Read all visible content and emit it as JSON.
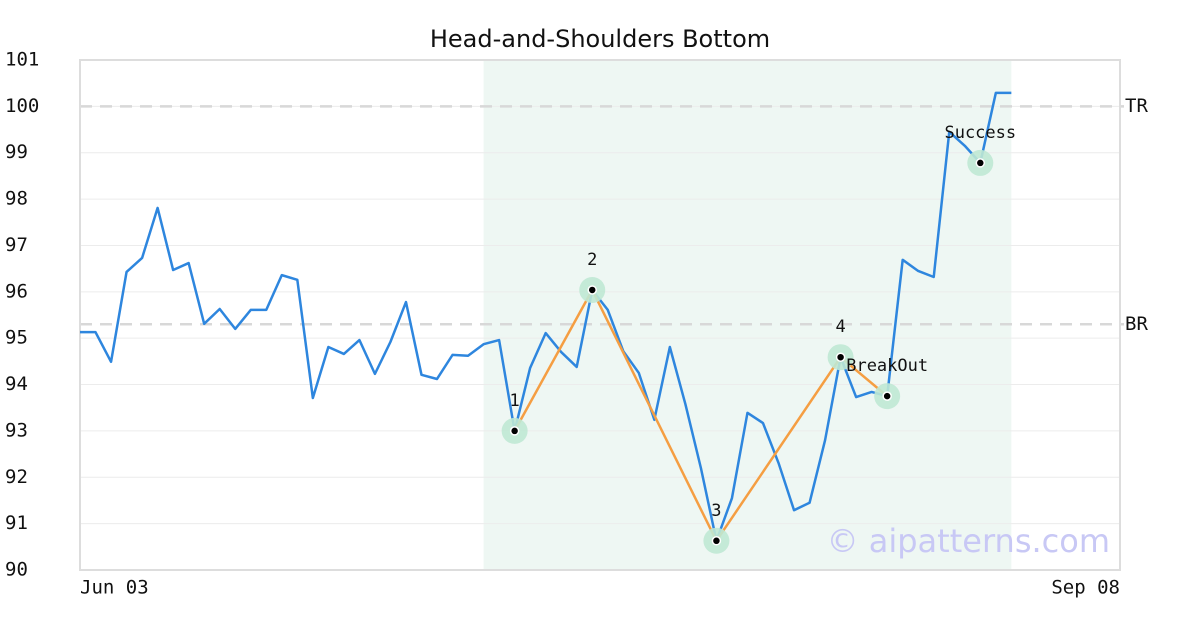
{
  "chart_data": {
    "type": "line",
    "title": "Head-and-Shoulders Bottom",
    "categories": [
      "Jun 03",
      null,
      null,
      null,
      null,
      null,
      null,
      null,
      null,
      null,
      null,
      null,
      null,
      null,
      null,
      null,
      null,
      null,
      null,
      null,
      null,
      null,
      null,
      null,
      null,
      null,
      null,
      null,
      null,
      null,
      null,
      null,
      null,
      null,
      null,
      null,
      null,
      null,
      null,
      null,
      null,
      null,
      null,
      null,
      null,
      null,
      null,
      null,
      null,
      null,
      null,
      null,
      null,
      null,
      null,
      null,
      null,
      null,
      null,
      null,
      null,
      null,
      null,
      null,
      null,
      null,
      null,
      "Sep 08"
    ],
    "series": [
      {
        "color": "#2e86de",
        "values": [
          95.13,
          95.13,
          94.49,
          96.43,
          96.73,
          97.81,
          96.47,
          96.62,
          95.31,
          95.63,
          95.2,
          95.61,
          95.61,
          96.36,
          96.26,
          93.71,
          94.81,
          94.66,
          94.96,
          94.23,
          94.92,
          95.78,
          94.21,
          94.12,
          94.64,
          94.62,
          94.87,
          94.96,
          93.0,
          94.36,
          95.11,
          94.7,
          94.38,
          96.04,
          95.61,
          94.72,
          94.25,
          93.24,
          94.81,
          93.58,
          92.2,
          90.63,
          91.55,
          93.39,
          93.17,
          92.31,
          91.29,
          91.45,
          92.8,
          94.59,
          93.73,
          93.84,
          93.75,
          96.69,
          96.45,
          96.32,
          99.45,
          99.15,
          98.78,
          100.29,
          100.29,
          null,
          null,
          null,
          null,
          null,
          null,
          null
        ]
      }
    ],
    "ylim": [
      90,
      101
    ],
    "yticks": [
      90,
      91,
      92,
      93,
      94,
      95,
      96,
      97,
      98,
      99,
      100,
      101
    ],
    "grid": true,
    "highlight": {
      "from": 26,
      "to": 60,
      "color": "#eef7f3"
    },
    "pattern": {
      "color": "#f59e42",
      "points": [
        {
          "x": 28,
          "y": 93.0,
          "label": "1"
        },
        {
          "x": 33,
          "y": 96.04,
          "label": "2"
        },
        {
          "x": 41,
          "y": 90.63,
          "label": "3"
        },
        {
          "x": 49,
          "y": 94.59,
          "label": "4"
        },
        {
          "x": 52,
          "y": 93.75,
          "label": "BreakOut"
        }
      ]
    },
    "markers": [
      {
        "x": 58,
        "y": 98.78,
        "label": "Success"
      }
    ],
    "marker_color": "#bfe8d4",
    "ref_lines": [
      {
        "value": 100,
        "label": "TR"
      },
      {
        "value": 95.3,
        "label": "BR"
      }
    ],
    "watermark": "© aipatterns.com"
  }
}
